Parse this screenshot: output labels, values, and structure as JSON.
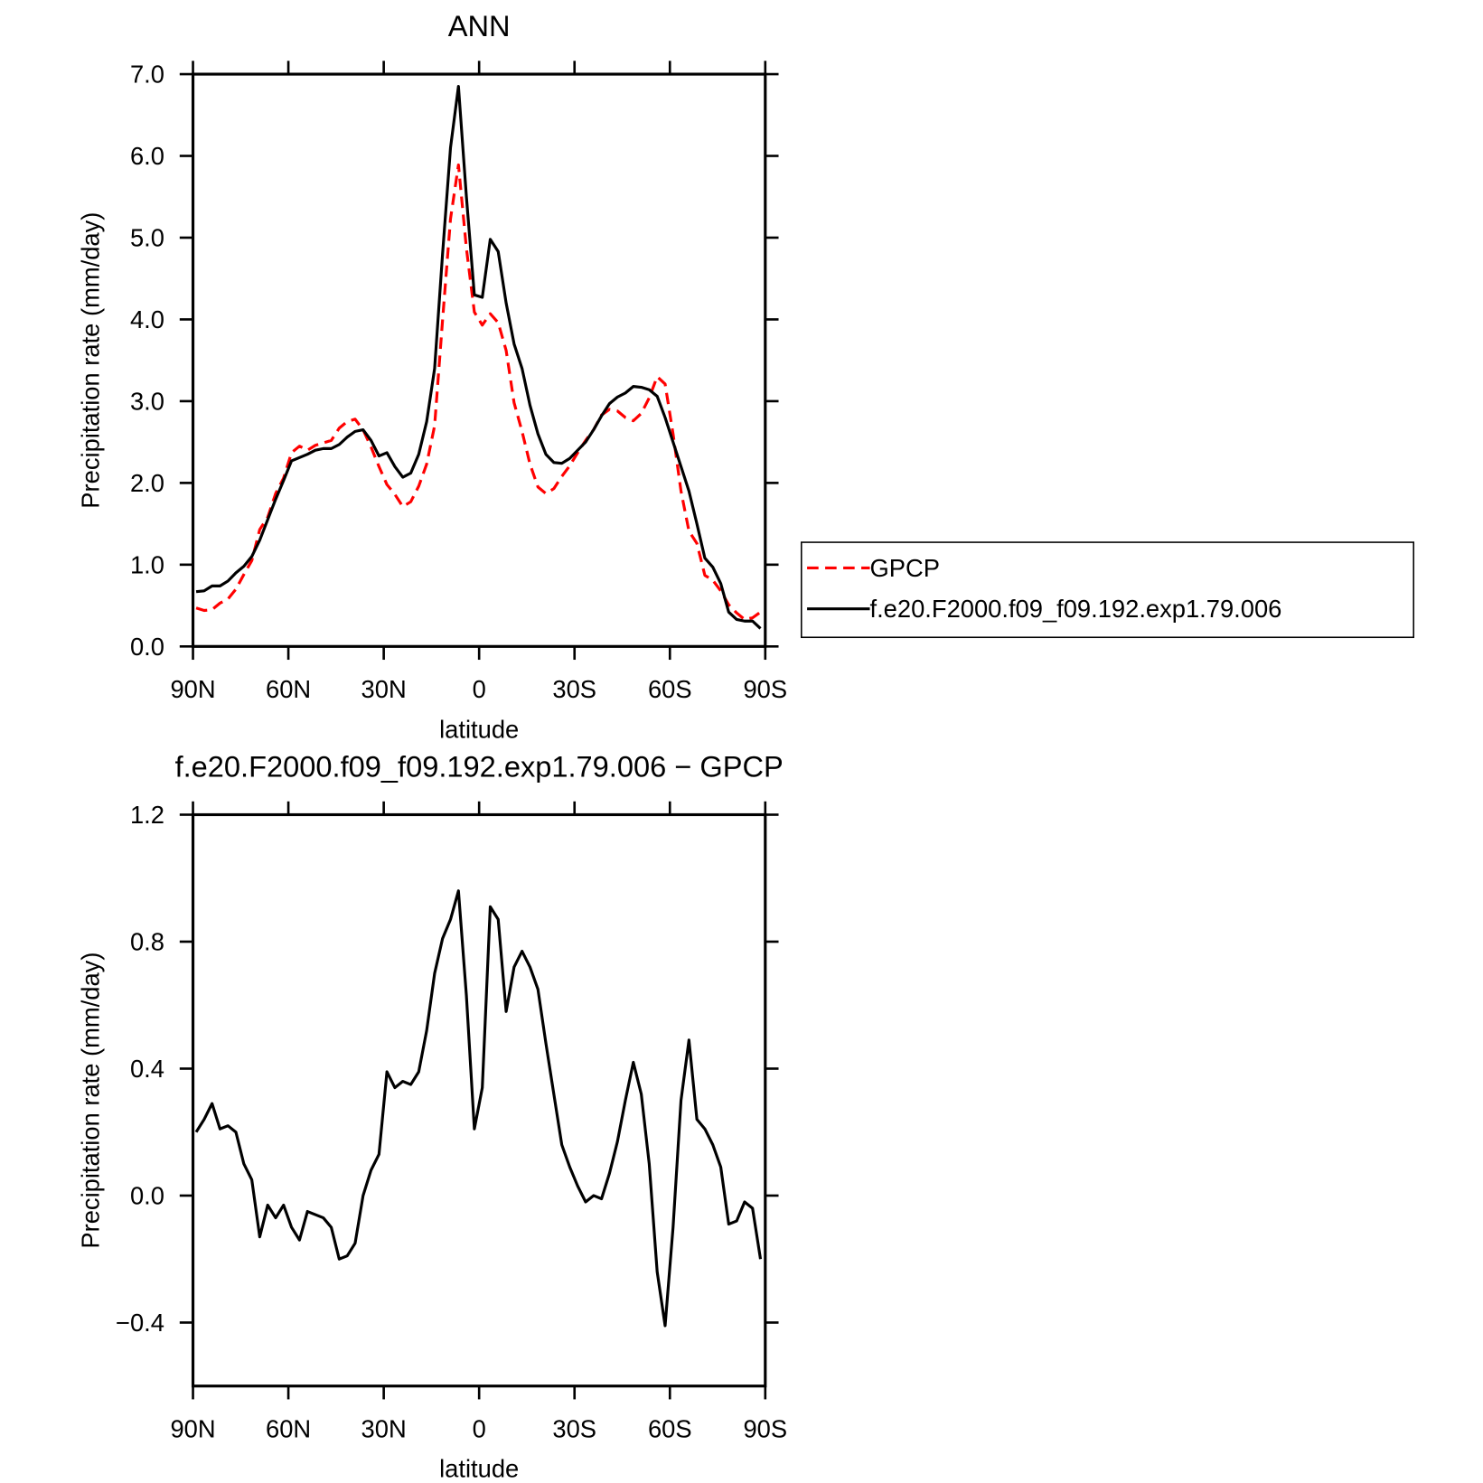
{
  "chart_data": [
    {
      "type": "line",
      "title": "ANN",
      "xlabel": "latitude",
      "ylabel": "Precipitation rate (mm/day)",
      "x": [
        89,
        86.5,
        84,
        81.5,
        79,
        76.5,
        74,
        71.5,
        69,
        66.5,
        64,
        61.5,
        59,
        56.5,
        54,
        51.5,
        49,
        46.5,
        44,
        41.5,
        39,
        36.5,
        34,
        31.5,
        29,
        26.5,
        24,
        21.5,
        19,
        16.5,
        14,
        11.5,
        9,
        6.5,
        4,
        1.5,
        -1,
        -3.5,
        -6,
        -8.5,
        -11,
        -13.5,
        -16,
        -18.5,
        -21,
        -23.5,
        -26,
        -28.5,
        -31,
        -33.5,
        -36,
        -38.5,
        -41,
        -43.5,
        -46,
        -48.5,
        -51,
        -53.5,
        -56,
        -58.5,
        -61,
        -63.5,
        -66,
        -68.5,
        -71,
        -73.5,
        -76,
        -78.5,
        -81,
        -83.5,
        -86,
        -88.5
      ],
      "xlim": [
        90,
        -90
      ],
      "xticks": [
        {
          "value": 90,
          "label": "90N"
        },
        {
          "value": 60,
          "label": "60N"
        },
        {
          "value": 30,
          "label": "30N"
        },
        0,
        {
          "value": -30,
          "label": "30S"
        },
        {
          "value": -60,
          "label": "60S"
        },
        {
          "value": -90,
          "label": "90S"
        }
      ],
      "ylim": [
        0,
        7
      ],
      "yticks": [
        {
          "value": 0,
          "label": "0.0"
        },
        {
          "value": 1,
          "label": "1.0"
        },
        {
          "value": 2,
          "label": "2.0"
        },
        {
          "value": 3,
          "label": "3.0"
        },
        {
          "value": 4,
          "label": "4.0"
        },
        {
          "value": 5,
          "label": "5.0"
        },
        {
          "value": 6,
          "label": "6.0"
        },
        {
          "value": 7,
          "label": "7.0"
        }
      ],
      "legend": "right",
      "series": [
        {
          "name": "GPCP",
          "color": "#ff0000",
          "dashed": true,
          "values": [
            0.47,
            0.44,
            0.45,
            0.53,
            0.58,
            0.7,
            0.88,
            1.05,
            1.43,
            1.58,
            1.87,
            2.06,
            2.37,
            2.45,
            2.4,
            2.46,
            2.49,
            2.52,
            2.67,
            2.75,
            2.78,
            2.65,
            2.44,
            2.2,
            1.98,
            1.86,
            1.71,
            1.77,
            1.96,
            2.23,
            2.7,
            3.99,
            5.23,
            5.89,
            4.87,
            4.09,
            3.93,
            4.07,
            3.96,
            3.62,
            2.98,
            2.63,
            2.23,
            1.95,
            1.87,
            1.93,
            2.08,
            2.21,
            2.37,
            2.52,
            2.65,
            2.83,
            2.9,
            2.88,
            2.8,
            2.76,
            2.85,
            3.04,
            3.3,
            3.21,
            2.6,
            1.9,
            1.41,
            1.26,
            0.87,
            0.81,
            0.68,
            0.51,
            0.41,
            0.33,
            0.35,
            0.42
          ]
        },
        {
          "name": "f.e20.F2000.f09_f09.192.exp1.79.006",
          "color": "#000000",
          "dashed": false,
          "values": [
            0.67,
            0.68,
            0.74,
            0.74,
            0.8,
            0.9,
            0.98,
            1.1,
            1.3,
            1.55,
            1.8,
            2.03,
            2.27,
            2.31,
            2.35,
            2.4,
            2.42,
            2.42,
            2.47,
            2.56,
            2.63,
            2.65,
            2.52,
            2.33,
            2.37,
            2.2,
            2.07,
            2.12,
            2.35,
            2.75,
            3.4,
            4.8,
            6.1,
            6.85,
            5.5,
            4.3,
            4.27,
            4.98,
            4.83,
            4.2,
            3.7,
            3.4,
            2.95,
            2.6,
            2.35,
            2.25,
            2.24,
            2.3,
            2.4,
            2.5,
            2.65,
            2.82,
            2.97,
            3.05,
            3.1,
            3.18,
            3.17,
            3.14,
            3.06,
            2.8,
            2.5,
            2.2,
            1.9,
            1.5,
            1.08,
            0.97,
            0.77,
            0.42,
            0.33,
            0.31,
            0.31,
            0.22
          ]
        }
      ]
    },
    {
      "type": "line",
      "title": "f.e20.F2000.f09_f09.192.exp1.79.006 − GPCP",
      "xlabel": "latitude",
      "ylabel": "Precipitation rate (mm/day)",
      "x": [
        89,
        86.5,
        84,
        81.5,
        79,
        76.5,
        74,
        71.5,
        69,
        66.5,
        64,
        61.5,
        59,
        56.5,
        54,
        51.5,
        49,
        46.5,
        44,
        41.5,
        39,
        36.5,
        34,
        31.5,
        29,
        26.5,
        24,
        21.5,
        19,
        16.5,
        14,
        11.5,
        9,
        6.5,
        4,
        1.5,
        -1,
        -3.5,
        -6,
        -8.5,
        -11,
        -13.5,
        -16,
        -18.5,
        -21,
        -23.5,
        -26,
        -28.5,
        -31,
        -33.5,
        -36,
        -38.5,
        -41,
        -43.5,
        -46,
        -48.5,
        -51,
        -53.5,
        -56,
        -58.5,
        -61,
        -63.5,
        -66,
        -68.5,
        -71,
        -73.5,
        -76,
        -78.5,
        -81,
        -83.5,
        -86,
        -88.5
      ],
      "xlim": [
        90,
        -90
      ],
      "xticks": [
        {
          "value": 90,
          "label": "90N"
        },
        {
          "value": 60,
          "label": "60N"
        },
        {
          "value": 30,
          "label": "30N"
        },
        0,
        {
          "value": -30,
          "label": "30S"
        },
        {
          "value": -60,
          "label": "60S"
        },
        {
          "value": -90,
          "label": "90S"
        }
      ],
      "ylim": [
        -0.6,
        1.2
      ],
      "yticks": [
        {
          "value": -0.4,
          "label": "−0.4"
        },
        {
          "value": 0,
          "label": "0.0"
        },
        0.4,
        0.8,
        1.2
      ],
      "color": "#000000",
      "values": [
        0.2,
        0.24,
        0.29,
        0.21,
        0.22,
        0.2,
        0.1,
        0.05,
        -0.13,
        -0.03,
        -0.07,
        -0.03,
        -0.1,
        -0.14,
        -0.05,
        -0.06,
        -0.07,
        -0.1,
        -0.2,
        -0.19,
        -0.15,
        0,
        0.08,
        0.13,
        0.39,
        0.34,
        0.36,
        0.35,
        0.39,
        0.52,
        0.7,
        0.81,
        0.87,
        0.96,
        0.63,
        0.21,
        0.34,
        0.91,
        0.87,
        0.58,
        0.72,
        0.77,
        0.72,
        0.65,
        0.48,
        0.32,
        0.16,
        0.09,
        0.03,
        -0.02,
        0,
        -0.01,
        0.07,
        0.17,
        0.3,
        0.42,
        0.32,
        0.1,
        -0.24,
        -0.41,
        -0.1,
        0.3,
        0.49,
        0.24,
        0.21,
        0.16,
        0.09,
        -0.09,
        -0.08,
        -0.02,
        -0.04,
        -0.2
      ]
    }
  ]
}
